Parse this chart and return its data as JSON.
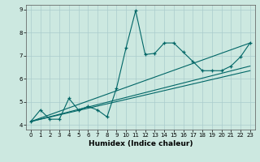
{
  "title": "",
  "xlabel": "Humidex (Indice chaleur)",
  "ylabel": "",
  "background_color": "#cce8e0",
  "grid_color": "#aacccc",
  "line_color": "#006666",
  "xlim": [
    -0.5,
    23.5
  ],
  "ylim": [
    3.8,
    9.2
  ],
  "xticks": [
    0,
    1,
    2,
    3,
    4,
    5,
    6,
    7,
    8,
    9,
    10,
    11,
    12,
    13,
    14,
    15,
    16,
    17,
    18,
    19,
    20,
    21,
    22,
    23
  ],
  "yticks": [
    4,
    5,
    6,
    7,
    8,
    9
  ],
  "series1_x": [
    0,
    1,
    2,
    3,
    4,
    5,
    6,
    7,
    8,
    9,
    10,
    11,
    12,
    13,
    14,
    15,
    16,
    17,
    18,
    19,
    20,
    21,
    22,
    23
  ],
  "series1_y": [
    4.15,
    4.65,
    4.25,
    4.25,
    5.15,
    4.65,
    4.8,
    4.65,
    4.35,
    5.6,
    7.35,
    8.95,
    7.05,
    7.1,
    7.55,
    7.55,
    7.15,
    6.75,
    6.35,
    6.35,
    6.35,
    6.55,
    6.95,
    7.55
  ],
  "series2_x": [
    0,
    23
  ],
  "series2_y": [
    4.15,
    7.55
  ],
  "series3_x": [
    0,
    23
  ],
  "series3_y": [
    4.15,
    6.35
  ],
  "series4_x": [
    0,
    23
  ],
  "series4_y": [
    4.15,
    6.55
  ]
}
